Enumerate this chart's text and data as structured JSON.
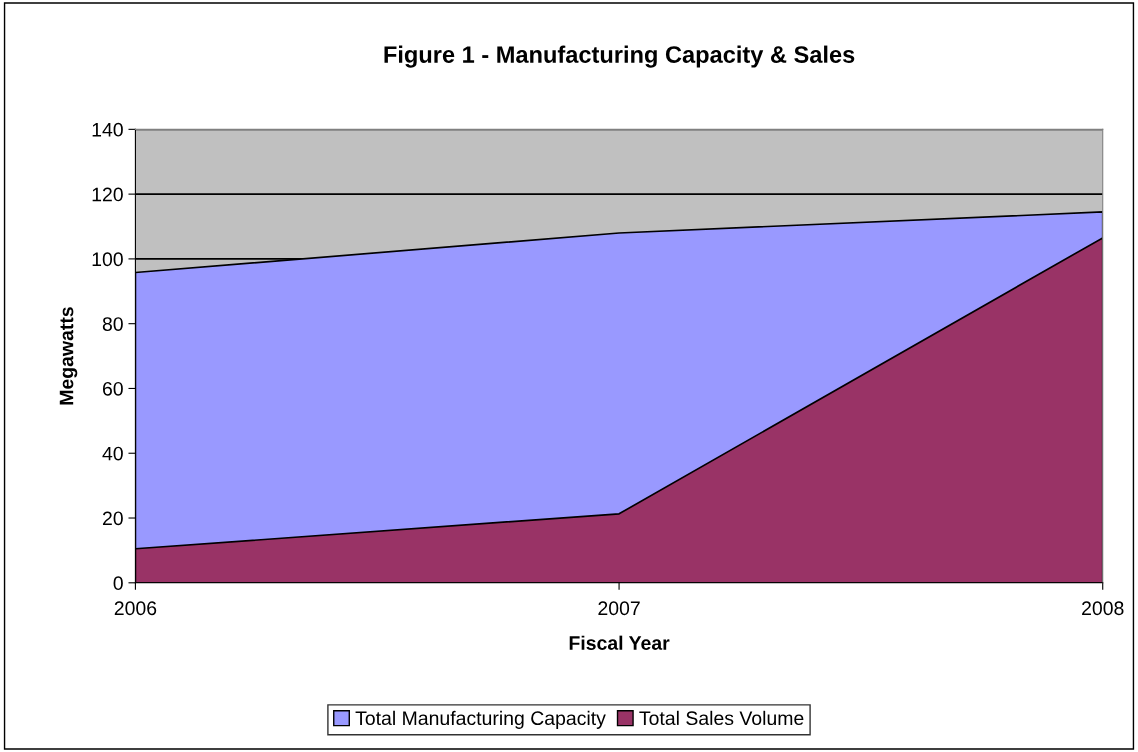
{
  "chart_data": {
    "type": "area",
    "title": "Figure 1 - Manufacturing Capacity & Sales",
    "xlabel": "Fiscal Year",
    "ylabel": "Megawatts",
    "x": [
      2006,
      2007,
      2008
    ],
    "series": [
      {
        "name": "Total Manufacturing Capacity",
        "color": "#9999ff",
        "values": [
          95.8,
          108,
          114.5
        ]
      },
      {
        "name": "Total Sales Volume",
        "color": "#993366",
        "values": [
          10.5,
          21.3,
          106.5
        ]
      }
    ],
    "xlim": [
      2006,
      2008
    ],
    "xticks": [
      2006,
      2007,
      2008
    ],
    "ylim": [
      0,
      140
    ],
    "yticks": [
      0,
      20,
      40,
      60,
      80,
      100,
      120,
      140
    ],
    "grid": "y",
    "legend": "bottom"
  }
}
